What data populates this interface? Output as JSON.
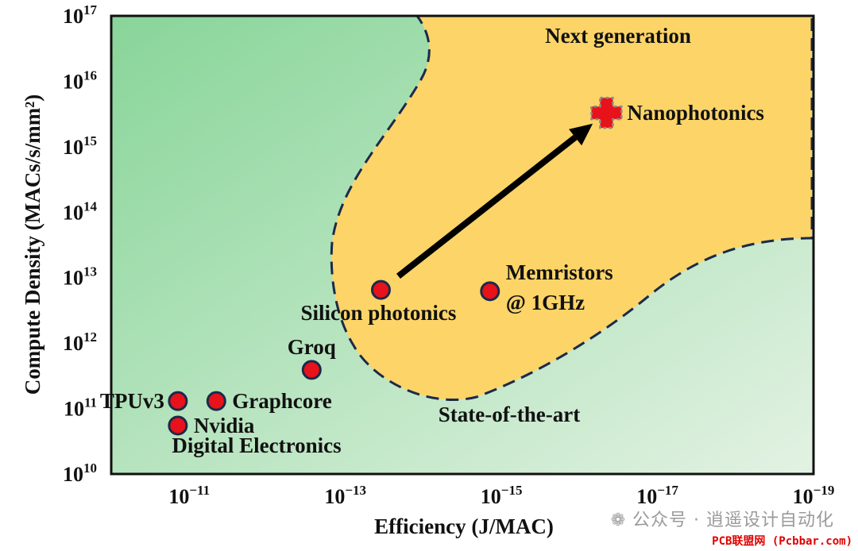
{
  "chart_data": {
    "type": "scatter",
    "title": "",
    "xlabel": "Efficiency (J/MAC)",
    "ylabel": "Compute Density (MACs/s/mm²)",
    "x_scale": "log-reversed",
    "y_scale": "log",
    "xlim": [
      1e-10,
      1e-19
    ],
    "ylim": [
      10000000000.0,
      1e+17
    ],
    "x_ticks": [
      {
        "base": "10",
        "exp": "−11",
        "value": 1e-11
      },
      {
        "base": "10",
        "exp": "−13",
        "value": 1e-13
      },
      {
        "base": "10",
        "exp": "−15",
        "value": 1e-15
      },
      {
        "base": "10",
        "exp": "−17",
        "value": 1e-17
      },
      {
        "base": "10",
        "exp": "−19",
        "value": 1e-19
      }
    ],
    "y_ticks": [
      {
        "base": "10",
        "exp": "10",
        "value": 10000000000.0
      },
      {
        "base": "10",
        "exp": "11",
        "value": 100000000000.0
      },
      {
        "base": "10",
        "exp": "12",
        "value": 1000000000000.0
      },
      {
        "base": "10",
        "exp": "13",
        "value": 10000000000000.0
      },
      {
        "base": "10",
        "exp": "14",
        "value": 100000000000000.0
      },
      {
        "base": "10",
        "exp": "15",
        "value": 1000000000000000.0
      },
      {
        "base": "10",
        "exp": "16",
        "value": 1e+16
      },
      {
        "base": "10",
        "exp": "17",
        "value": 1e+17
      }
    ],
    "points": [
      {
        "label": "TPUv3",
        "x": 1.4e-11,
        "y": 130000000000.0,
        "marker": "circle",
        "label_side": "left"
      },
      {
        "label": "Nvidia",
        "x": 1.4e-11,
        "y": 55000000000.0,
        "marker": "circle",
        "label_side": "right"
      },
      {
        "label": "Graphcore",
        "x": 4.5e-12,
        "y": 130000000000.0,
        "marker": "circle",
        "label_side": "right"
      },
      {
        "label": "Groq",
        "x": 2.7e-13,
        "y": 390000000000.0,
        "marker": "circle",
        "label_side": "top"
      },
      {
        "label": "Silicon photonics",
        "x": 3.5e-14,
        "y": 6500000000000.0,
        "marker": "circle",
        "label_side": "bottom"
      },
      {
        "label": "Memristors",
        "label2": "@ 1GHz",
        "x": 1.4e-15,
        "y": 6200000000000.0,
        "marker": "circle",
        "label_side": "right"
      },
      {
        "label": "Nanophotonics",
        "x": 4.5e-17,
        "y": 3300000000000000.0,
        "marker": "cross",
        "label_side": "right"
      }
    ],
    "arrow": {
      "from_x": 3.5e-14,
      "from_y": 6500000000000.0,
      "to_x": 4.5e-17,
      "to_y": 3300000000000000.0
    },
    "regions": [
      {
        "label": "Digital Electronics",
        "color": "#a8ddb0"
      },
      {
        "label": "State-of-the-art",
        "color": "#cfe9d0"
      },
      {
        "label": "Next generation",
        "color": "#fdd468"
      }
    ],
    "colors": {
      "marker_fill": "#e8121a",
      "marker_stroke": "#1b2a4a",
      "region_border": "#1b2a4a",
      "green_dark": "#88d599",
      "green_light": "#e3f2e3",
      "next_gen_fill": "#fdd468"
    },
    "grid": false,
    "legend": "none"
  },
  "watermark": {
    "icon": "wechat-icon",
    "text": "公众号 · 逍遥设计自动化"
  },
  "source_tag": "PCB联盟网 (Pcbbar.com)"
}
